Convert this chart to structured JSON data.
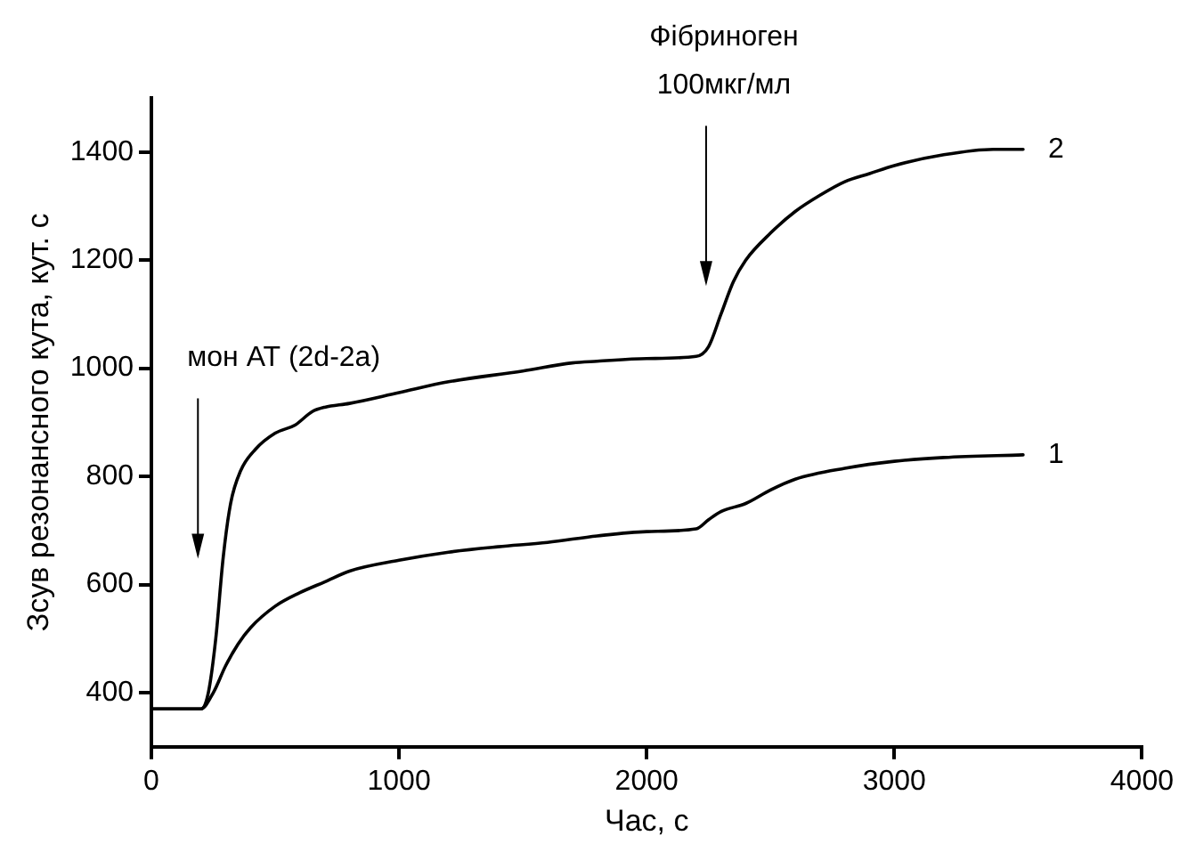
{
  "chart_data": {
    "type": "line",
    "xlabel": "Час, с",
    "ylabel": "Зсув резонансного кута, кут. с",
    "xlim": [
      0,
      4000
    ],
    "xticks": [
      0,
      1000,
      2000,
      3000,
      4000
    ],
    "ylim": [
      300,
      1500
    ],
    "yticks": [
      400,
      600,
      800,
      1000,
      1200,
      1400
    ],
    "grid": false,
    "legend": false,
    "marker": "none",
    "line_style": "solid",
    "annotations": [
      "мон АТ (2d-2a)",
      "Фібриноген\n100мкг/мл"
    ],
    "series": [
      {
        "name": "1",
        "color": "#000000",
        "x": [
          0,
          200,
          250,
          300,
          350,
          400,
          500,
          600,
          700,
          800,
          1000,
          1200,
          1400,
          1600,
          1800,
          2000,
          2200,
          2250,
          2300,
          2400,
          2500,
          2600,
          2800,
          3000,
          3200,
          3520
        ],
        "values": [
          370,
          370,
          400,
          450,
          490,
          520,
          560,
          585,
          605,
          625,
          645,
          660,
          670,
          678,
          690,
          698,
          703,
          720,
          735,
          750,
          775,
          795,
          815,
          828,
          835,
          840
        ]
      },
      {
        "name": "2",
        "color": "#000000",
        "x": [
          0,
          200,
          230,
          260,
          290,
          320,
          360,
          420,
          500,
          580,
          650,
          700,
          800,
          1000,
          1200,
          1500,
          1700,
          1800,
          2000,
          2200,
          2250,
          2300,
          2350,
          2400,
          2500,
          2600,
          2700,
          2800,
          2900,
          3000,
          3200,
          3400,
          3520
        ],
        "values": [
          370,
          370,
          400,
          500,
          650,
          750,
          810,
          850,
          880,
          895,
          920,
          928,
          935,
          955,
          975,
          995,
          1010,
          1013,
          1018,
          1022,
          1040,
          1100,
          1160,
          1200,
          1250,
          1290,
          1320,
          1345,
          1360,
          1375,
          1395,
          1405,
          1405
        ]
      }
    ]
  }
}
